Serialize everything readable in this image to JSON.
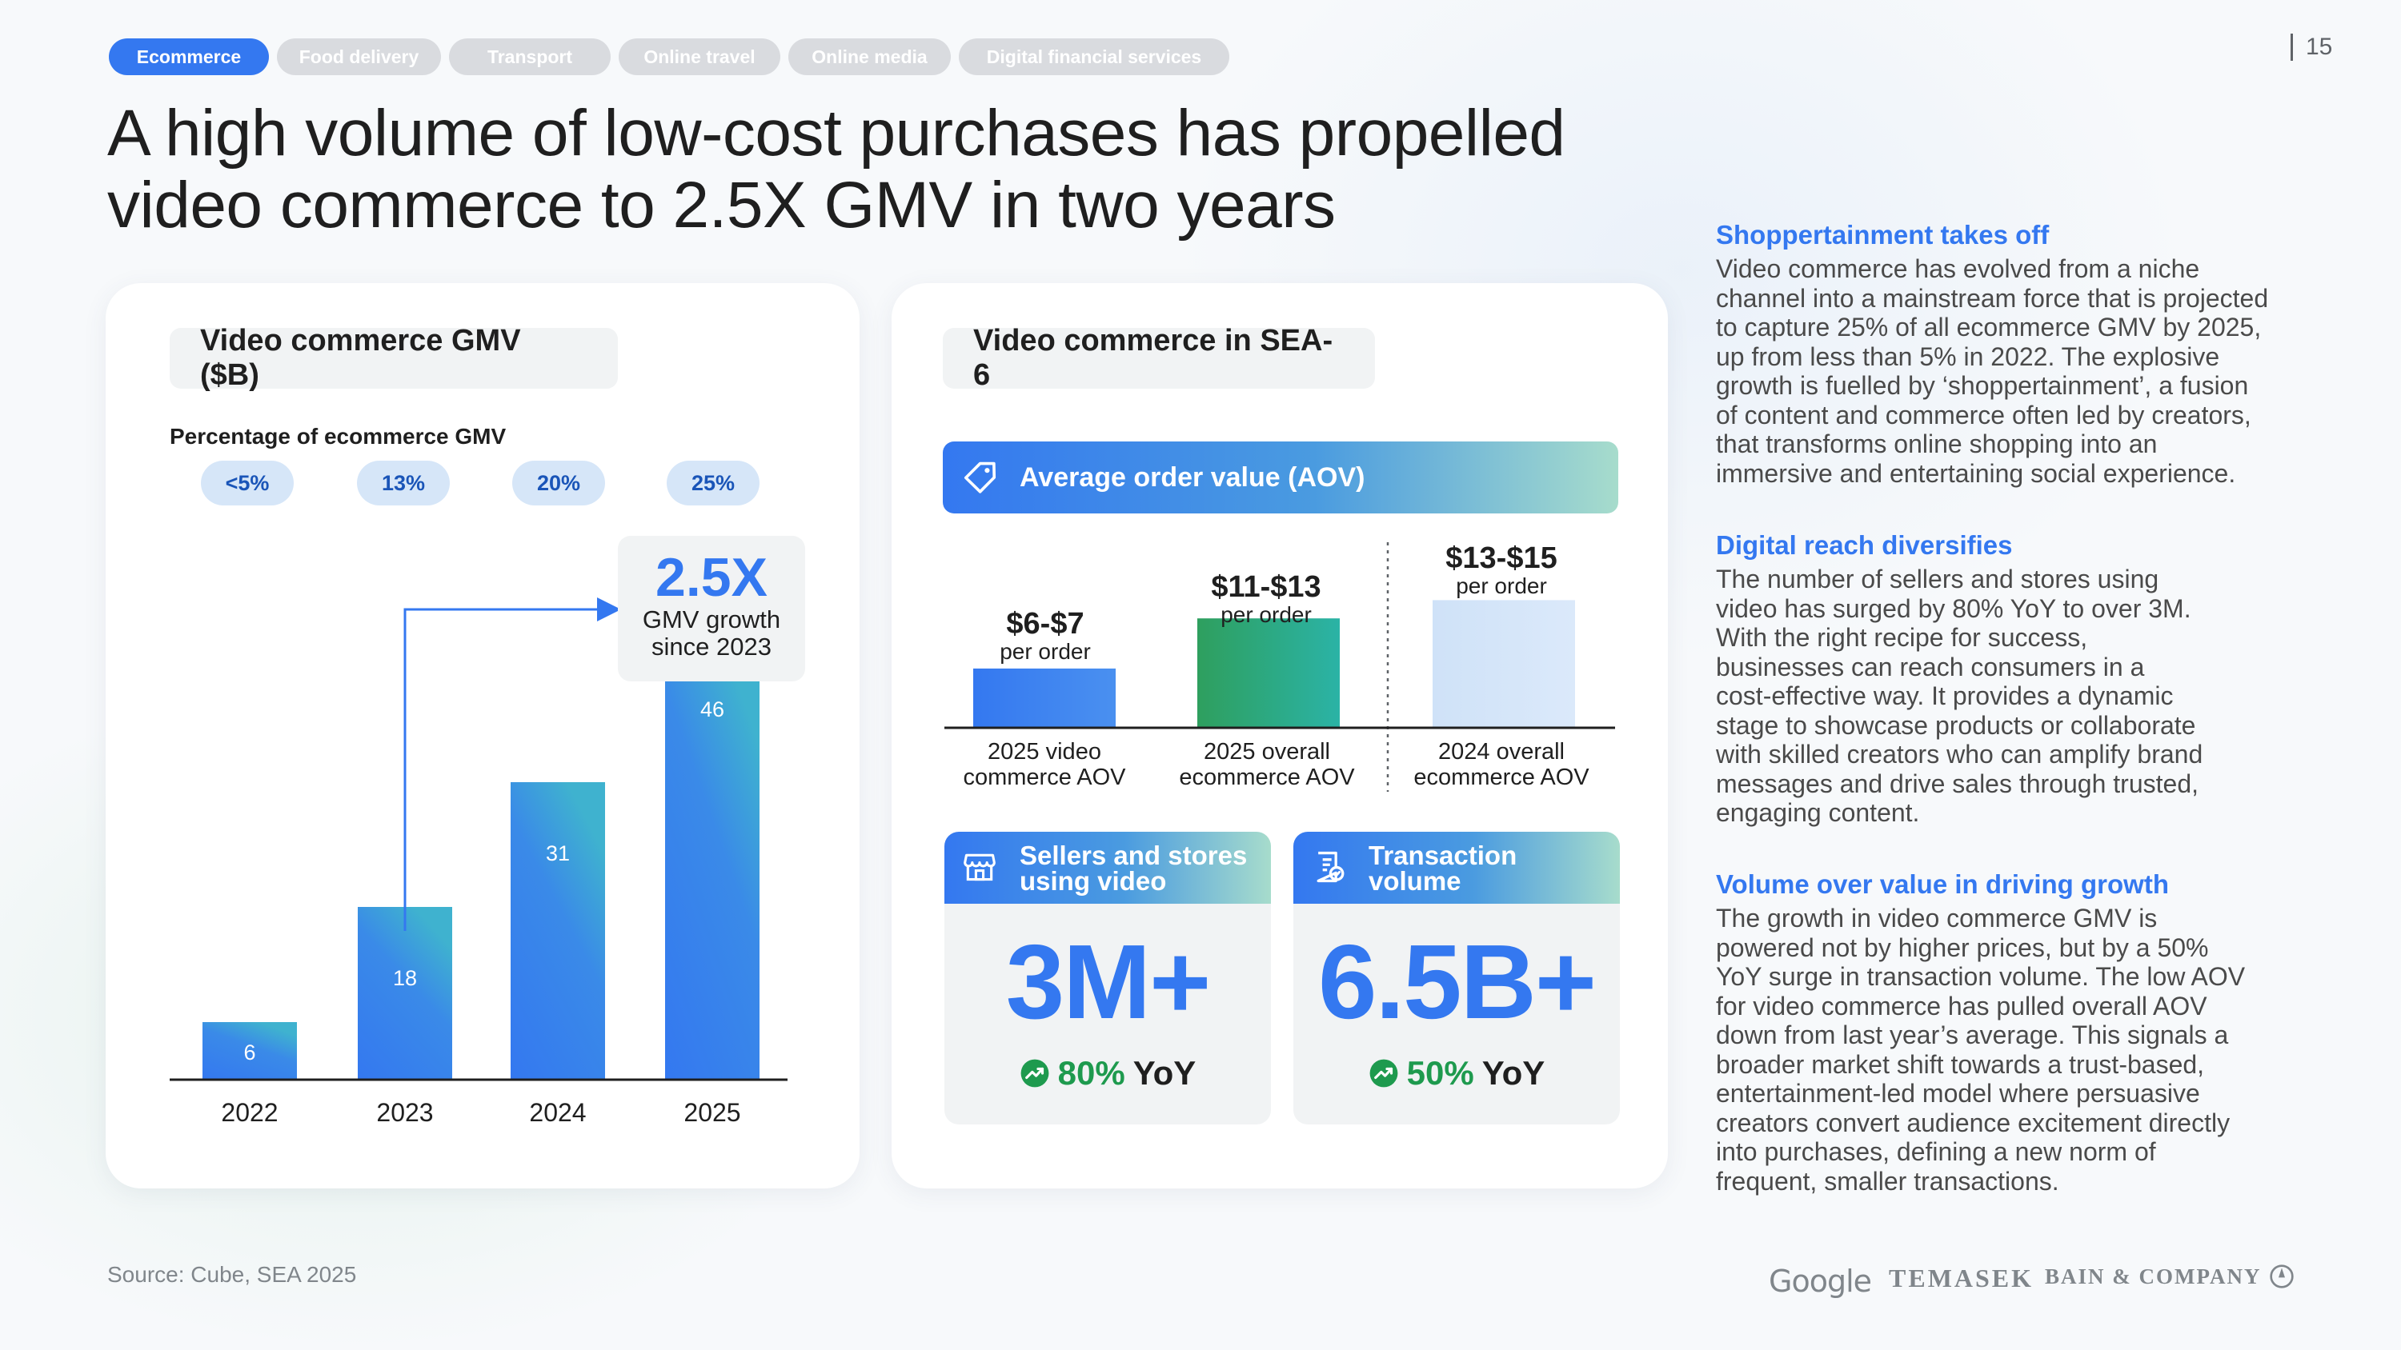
{
  "tabs": [
    {
      "label": "Ecommerce",
      "active": true
    },
    {
      "label": "Food delivery",
      "active": false
    },
    {
      "label": "Transport",
      "active": false
    },
    {
      "label": "Online travel",
      "active": false
    },
    {
      "label": "Online media",
      "active": false
    },
    {
      "label": "Digital financial services",
      "active": false
    }
  ],
  "page_number": "15",
  "title_line1": "A high volume of low-cost purchases has propelled",
  "title_line2": "video commerce to 2.5X GMV in two years",
  "gmv_card": {
    "heading": "Video commerce GMV ($B)",
    "pct_label": "Percentage of ecommerce GMV",
    "pcts": [
      "<5%",
      "13%",
      "20%",
      "25%"
    ],
    "growth_value": "2.5X",
    "growth_sub1": "GMV growth",
    "growth_sub2": "since 2023"
  },
  "chart_data": {
    "type": "bar",
    "title": "Video commerce GMV ($B)",
    "categories": [
      "2022",
      "2023",
      "2024",
      "2025"
    ],
    "values": [
      6,
      18,
      31,
      46
    ],
    "value_labels": [
      "6",
      "18",
      "31",
      "46"
    ],
    "xlabel": "",
    "ylabel": "",
    "ylim": [
      0,
      50
    ],
    "grid": false,
    "annotation": "2.5X GMV growth since 2023"
  },
  "sea_card": {
    "heading": "Video commerce in SEA-6",
    "aov_title": "Average order value (AOV)",
    "aov": [
      {
        "value": "$6-$7",
        "per": "per order",
        "cap1": "2025 video",
        "cap2": "commerce AOV"
      },
      {
        "value": "$11-$13",
        "per": "per order",
        "cap1": "2025 overall",
        "cap2": "ecommerce AOV"
      },
      {
        "value": "$13-$15",
        "per": "per order",
        "cap1": "2024 overall",
        "cap2": "ecommerce AOV"
      }
    ],
    "aov_mid": [
      6.5,
      12,
      14
    ],
    "sellers": {
      "title1": "Sellers and stores",
      "title2": "using video",
      "value": "3M+",
      "yoy_pct": "80%",
      "yoy_word": "YoY"
    },
    "transactions": {
      "title1": "Transaction",
      "title2": "volume",
      "value": "6.5B+",
      "yoy_pct": "50%",
      "yoy_word": "YoY"
    }
  },
  "side": [
    {
      "heading": "Shoppertainment takes off",
      "lines": [
        "Video commerce has evolved from a niche",
        "channel into a mainstream force that is projected",
        "to capture 25% of all ecommerce GMV by 2025,",
        "up from less than 5% in 2022. The explosive",
        "growth is fuelled by ‘shoppertainment’, a fusion",
        "of content and commerce often led by creators,",
        "that transforms online shopping into an",
        "immersive and entertaining social experience."
      ]
    },
    {
      "heading": "Digital reach diversifies",
      "lines": [
        "The number of sellers and stores using",
        "video has surged by 80% YoY to over 3M.",
        "With the right recipe for success,",
        "businesses can reach consumers in a",
        "cost-effective way. It provides a dynamic",
        "stage to showcase products or collaborate",
        "with skilled creators who can amplify brand",
        "messages and drive sales through trusted,",
        "engaging content."
      ]
    },
    {
      "heading": "Volume over value in driving growth",
      "lines": [
        "The growth in video commerce GMV is",
        "powered not by higher prices, but by a 50%",
        "YoY surge in transaction volume. The low AOV",
        "for video commerce has pulled overall AOV",
        "down from last year’s average. This signals a",
        "broader market shift towards a trust-based,",
        "entertainment-led model where persuasive",
        "creators convert audience excitement directly",
        "into purchases, defining a new norm of",
        "frequent, smaller transactions."
      ]
    }
  ],
  "footer": {
    "source": "Source: Cube, SEA 2025",
    "logo_google": "Google",
    "logo_temasek": "TEMASEK",
    "logo_bain": "BAIN & COMPANY"
  },
  "colors": {
    "accent": "#3478f0",
    "green": "#1e9a4e",
    "pill": "#d6e6f8"
  }
}
